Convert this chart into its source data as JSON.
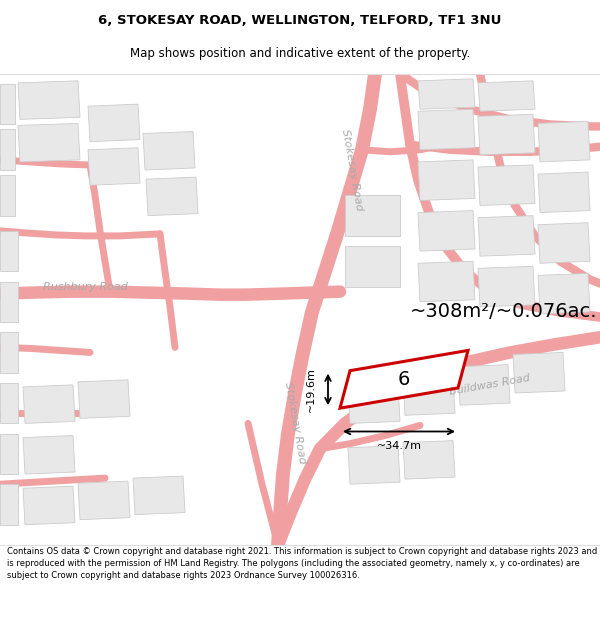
{
  "title": "6, STOKESAY ROAD, WELLINGTON, TELFORD, TF1 3NU",
  "subtitle": "Map shows position and indicative extent of the property.",
  "footer": "Contains OS data © Crown copyright and database right 2021. This information is subject to Crown copyright and database rights 2023 and is reproduced with the permission of HM Land Registry. The polygons (including the associated geometry, namely x, y co-ordinates) are subject to Crown copyright and database rights 2023 Ordnance Survey 100026316.",
  "area_label": "~308m²/~0.076ac.",
  "property_number": "6",
  "width_label": "~34.7m",
  "height_label": "~19.6m",
  "road_label_stokesay_top": "Stokesay Road",
  "road_label_stokesay_bot": "Stokesay Road",
  "road_label_rushbury": "Rushbury Road",
  "road_label_buildwas": "Buildwas Road",
  "road_line_color": "#f0a0a0",
  "road_thin_color": "#f4b8b8",
  "building_face_color": "#e8e8e8",
  "building_edge_color": "#cccccc",
  "property_fill": "#ffffff",
  "property_edge": "#cc0000",
  "label_color": "#aaaaaa",
  "map_bg": "#ffffff"
}
